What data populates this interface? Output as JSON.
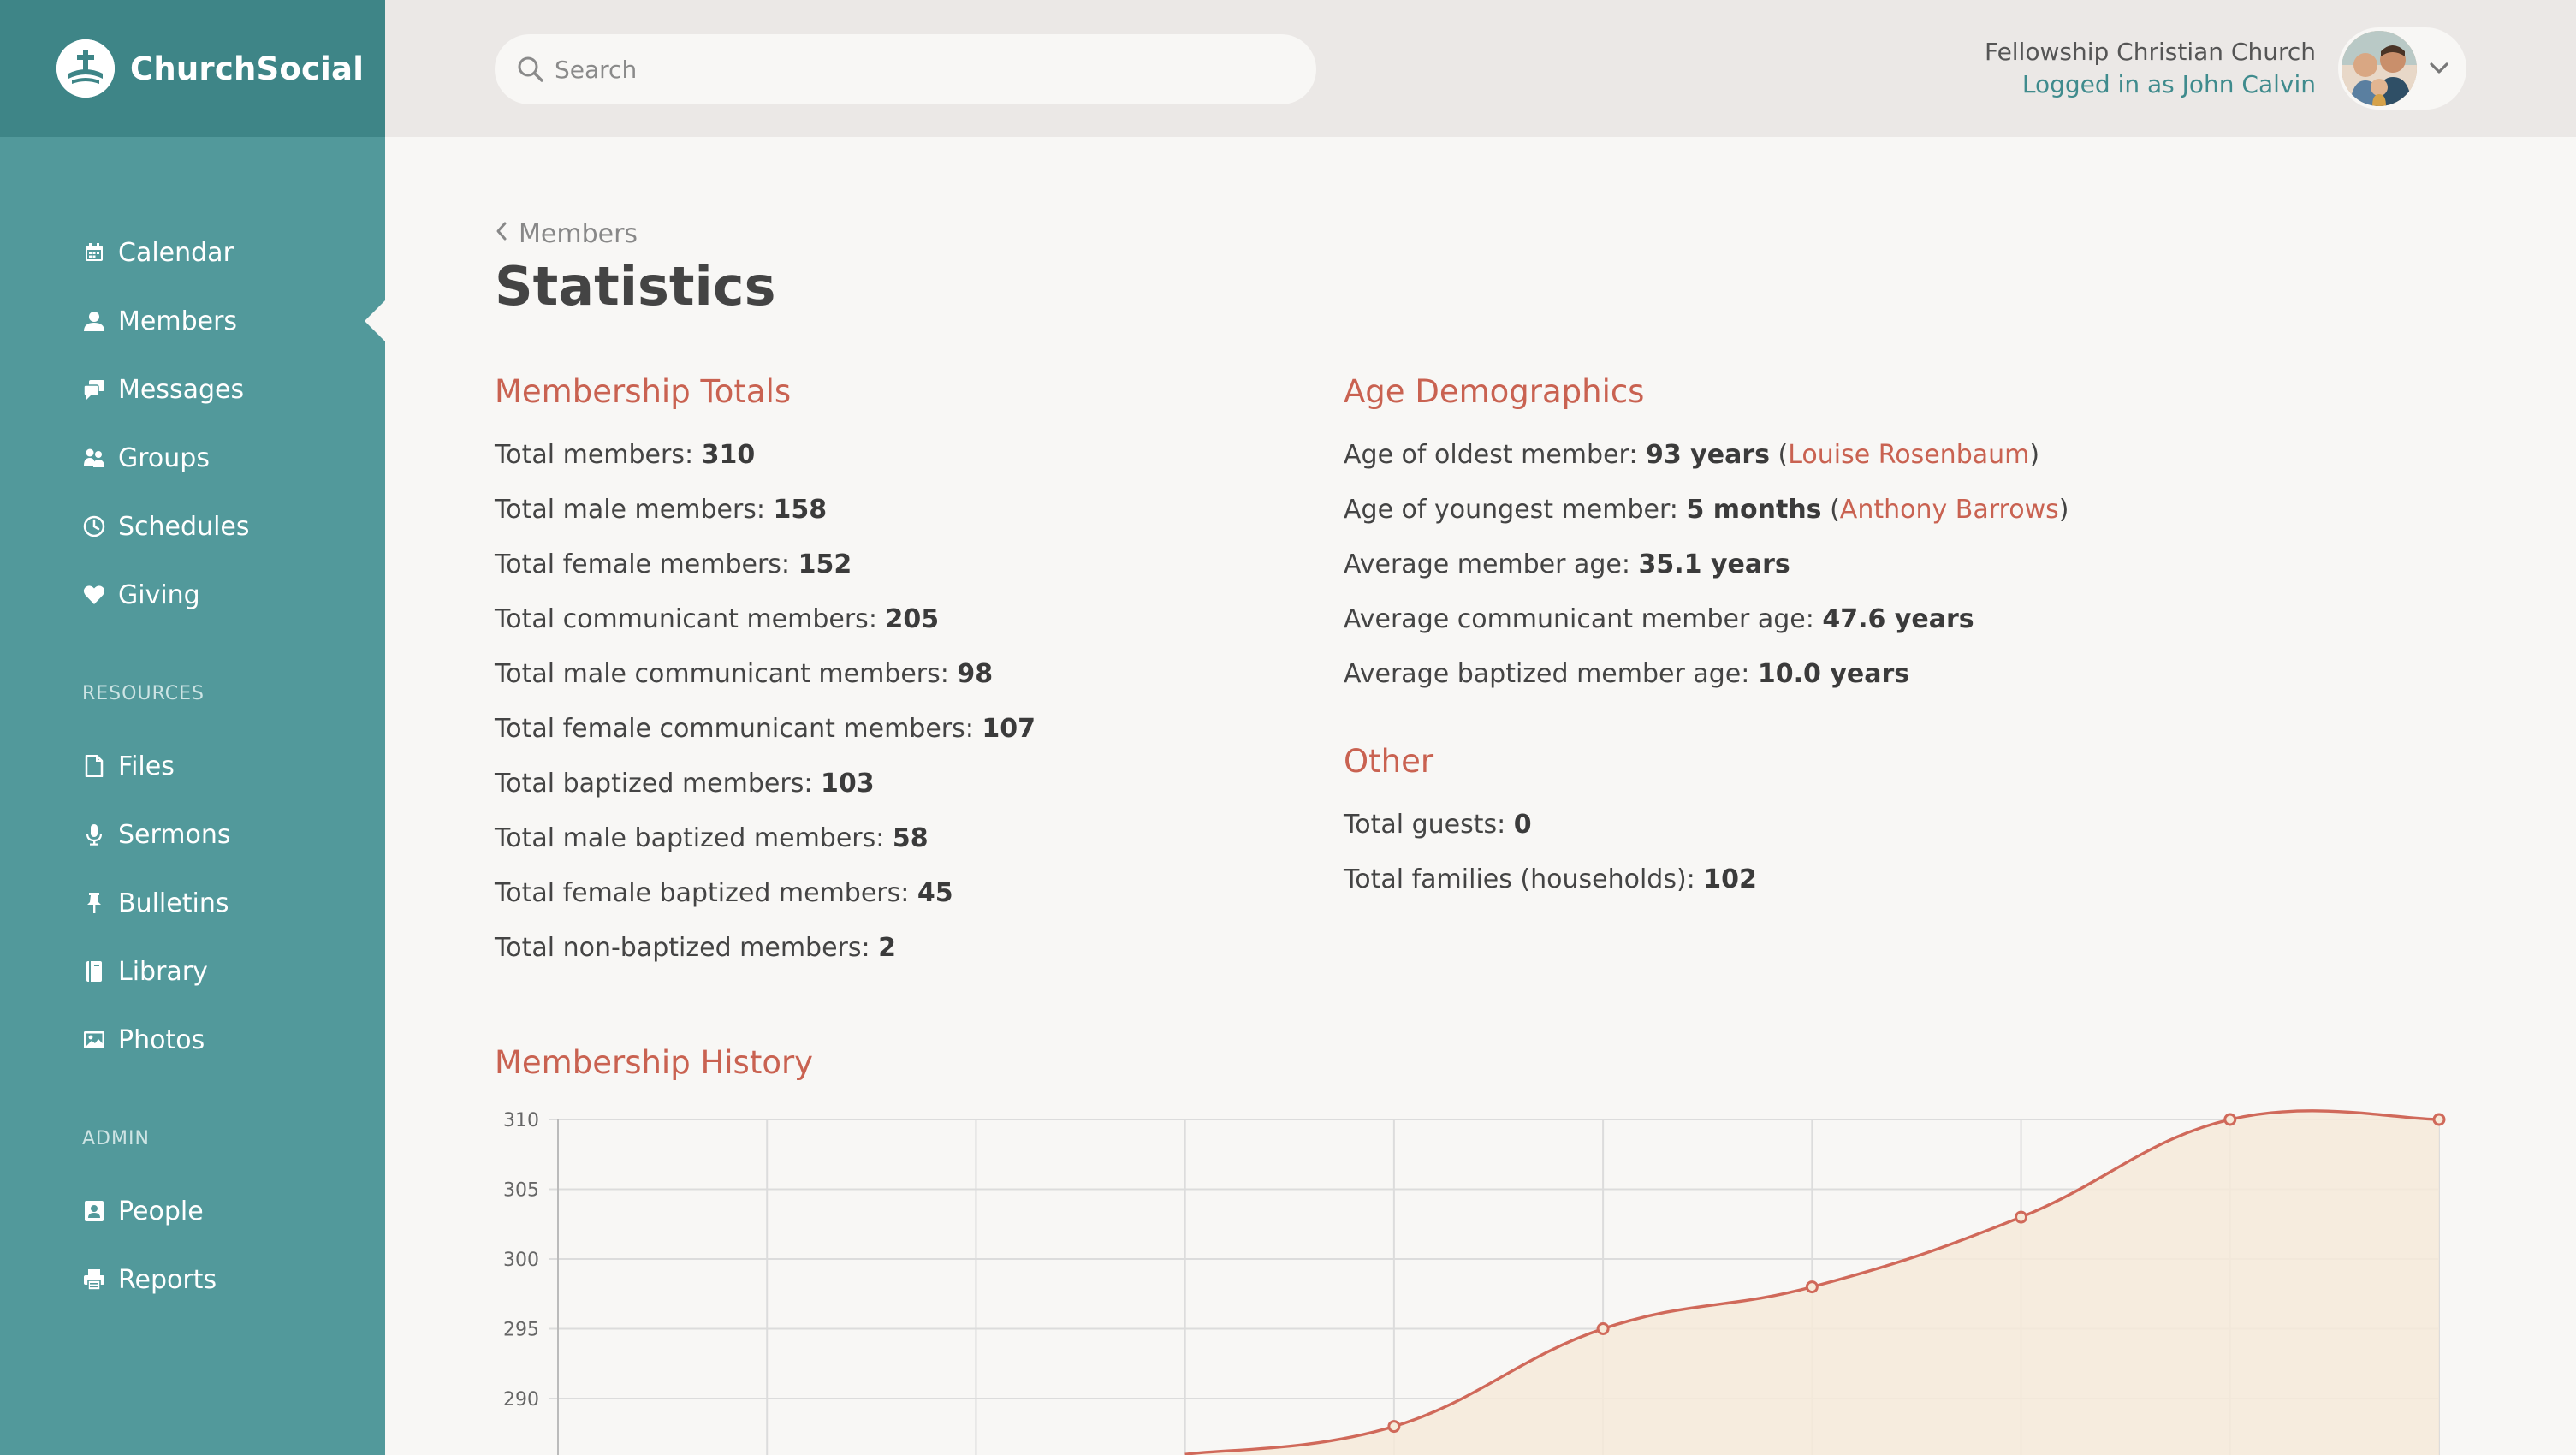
{
  "brand": {
    "name": "ChurchSocial"
  },
  "sidebar": {
    "main_items": [
      {
        "label": "Calendar",
        "icon": "calendar-icon"
      },
      {
        "label": "Members",
        "icon": "user-icon",
        "active": true
      },
      {
        "label": "Messages",
        "icon": "chat-icon"
      },
      {
        "label": "Groups",
        "icon": "groups-icon"
      },
      {
        "label": "Schedules",
        "icon": "clock-icon"
      },
      {
        "label": "Giving",
        "icon": "heart-icon"
      }
    ],
    "resources_label": "RESOURCES",
    "resources_items": [
      {
        "label": "Files",
        "icon": "file-icon"
      },
      {
        "label": "Sermons",
        "icon": "microphone-icon"
      },
      {
        "label": "Bulletins",
        "icon": "pin-icon"
      },
      {
        "label": "Library",
        "icon": "book-icon"
      },
      {
        "label": "Photos",
        "icon": "image-icon"
      }
    ],
    "admin_label": "ADMIN",
    "admin_items": [
      {
        "label": "People",
        "icon": "contacts-icon"
      },
      {
        "label": "Reports",
        "icon": "printer-icon"
      }
    ]
  },
  "search": {
    "placeholder": "Search"
  },
  "account": {
    "church": "Fellowship Christian Church",
    "logged_in": "Logged in as John Calvin"
  },
  "breadcrumb": {
    "label": "Members"
  },
  "page": {
    "title": "Statistics"
  },
  "membership_totals": {
    "title": "Membership Totals",
    "rows": [
      {
        "label": "Total members: ",
        "value": "310"
      },
      {
        "label": "Total male members: ",
        "value": "158"
      },
      {
        "label": "Total female members: ",
        "value": "152"
      },
      {
        "label": "Total communicant members: ",
        "value": "205"
      },
      {
        "label": "Total male communicant members: ",
        "value": "98"
      },
      {
        "label": "Total female communicant members: ",
        "value": "107"
      },
      {
        "label": "Total baptized members: ",
        "value": "103"
      },
      {
        "label": "Total male baptized members: ",
        "value": "58"
      },
      {
        "label": "Total female baptized members: ",
        "value": "45"
      },
      {
        "label": "Total non-baptized members: ",
        "value": "2"
      }
    ]
  },
  "age_demographics": {
    "title": "Age Demographics",
    "rows": [
      {
        "label": "Age of oldest member: ",
        "value": "93 years",
        "person": "Louise Rosenbaum"
      },
      {
        "label": "Age of youngest member: ",
        "value": "5 months",
        "person": "Anthony Barrows"
      },
      {
        "label": "Average member age: ",
        "value": "35.1 years"
      },
      {
        "label": "Average communicant member age: ",
        "value": "47.6 years"
      },
      {
        "label": "Average baptized member age: ",
        "value": "10.0 years"
      }
    ]
  },
  "other": {
    "title": "Other",
    "rows": [
      {
        "label": "Total guests: ",
        "value": "0"
      },
      {
        "label": "Total families (households): ",
        "value": "102"
      }
    ]
  },
  "history": {
    "title": "Membership History"
  },
  "chart_data": {
    "type": "area",
    "title": "Membership History",
    "xlabel": "",
    "ylabel": "",
    "x": [
      1,
      2,
      3,
      4,
      5,
      6,
      7,
      8,
      9,
      10
    ],
    "series": [
      {
        "values": [
          null,
          null,
          null,
          286,
          288,
          295,
          298,
          303,
          310,
          310
        ]
      }
    ],
    "y_ticks": [
      290,
      295,
      300,
      305,
      310
    ],
    "ylim": [
      286,
      310
    ],
    "grid": true,
    "colors": {
      "line": "#d0695a",
      "fill": "#f6ead9",
      "grid": "#dcdcdc"
    }
  }
}
